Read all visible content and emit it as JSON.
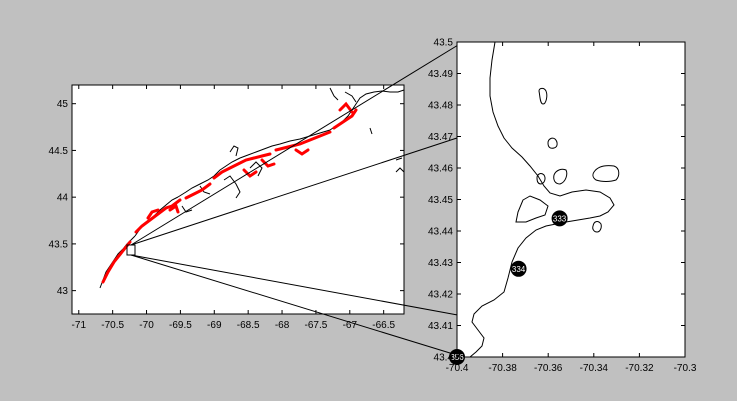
{
  "figure": {
    "background": "#c0c0c0"
  },
  "chart_data": [
    {
      "type": "map",
      "panel": "overview",
      "xlim": [
        -71.1,
        -66.2
      ],
      "ylim": [
        42.75,
        45.2
      ],
      "xticks": [
        -71,
        -70.5,
        -70,
        -69.5,
        -69,
        -68.5,
        -68,
        -67.5,
        -67,
        -66.5
      ],
      "xtick_labels": [
        "-71",
        "-70.5",
        "-70",
        "-69.5",
        "-69",
        "-68.5",
        "-68",
        "-67.5",
        "-67",
        "-66.5"
      ],
      "yticks": [
        43,
        43.5,
        44,
        44.5,
        45
      ],
      "ytick_labels": [
        "43",
        "43.5",
        "44",
        "44.5",
        "45"
      ],
      "grid": false,
      "coastline_color": "#000000",
      "highlight_color": "#ff0000",
      "inset_box": {
        "lon": [
          -70.4,
          -70.3
        ],
        "lat": [
          43.4,
          43.5
        ]
      }
    },
    {
      "type": "map",
      "panel": "zoom",
      "xlim": [
        -70.4,
        -70.3
      ],
      "ylim": [
        43.4,
        43.5
      ],
      "xticks": [
        -70.4,
        -70.38,
        -70.36,
        -70.34,
        -70.32,
        -70.3
      ],
      "xtick_labels": [
        "-70.4",
        "-70.38",
        "-70.36",
        "-70.34",
        "-70.32",
        "-70.3"
      ],
      "yticks": [
        43.4,
        43.41,
        43.42,
        43.43,
        43.44,
        43.45,
        43.46,
        43.47,
        43.48,
        43.49,
        43.5
      ],
      "ytick_labels": [
        "43.4",
        "43.41",
        "43.42",
        "43.43",
        "43.44",
        "43.45",
        "43.46",
        "43.47",
        "43.48",
        "43.49",
        "43.5"
      ],
      "grid": false,
      "stations": [
        {
          "label": "333",
          "lon": -70.355,
          "lat": 43.444
        },
        {
          "label": "334",
          "lon": -70.373,
          "lat": 43.428
        },
        {
          "label": "356",
          "lon": -70.4,
          "lat": 43.4
        }
      ],
      "station_color": "#000000"
    }
  ]
}
